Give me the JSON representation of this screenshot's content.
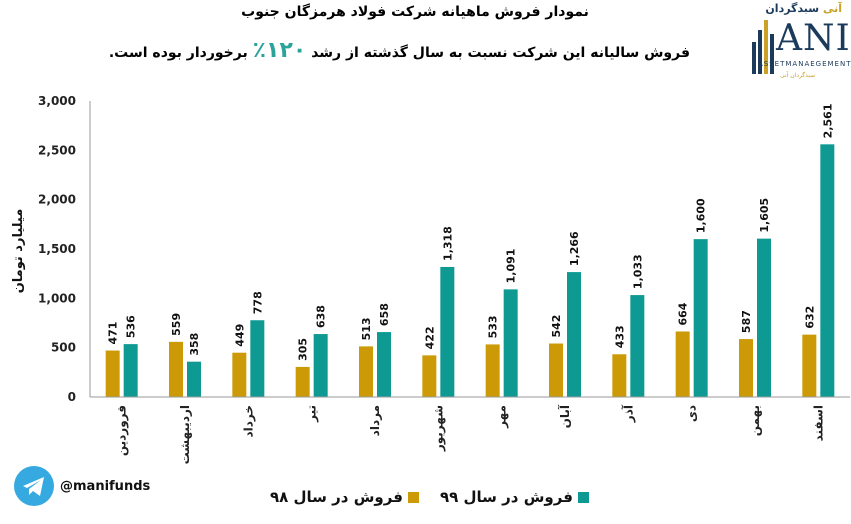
{
  "header": {
    "title": "نمودار فروش ماهیانه شرکت فولاد هرمزگان جنوب",
    "subtitle_before": "فروش سالیانه این شرکت نسبت به سال گذشته از رشد",
    "subtitle_growth": "۱۲۰٪",
    "subtitle_after": "برخوردار بوده است."
  },
  "logo": {
    "tagline_main": "سبدگردان",
    "tagline_accent": "آنی",
    "letters": "ANI",
    "name": "ASSETMANAEGEMENT",
    "sub": "سبدگردان آنی"
  },
  "footer": {
    "telegram_handle": "@manifunds"
  },
  "colors": {
    "series_98": "#cc9a06",
    "series_99": "#0e9a93",
    "accent": "#2aa39a"
  },
  "chart_data": {
    "type": "bar",
    "ylabel": "میلیارد تومان",
    "ylim": [
      0,
      3000
    ],
    "yticks": [
      0,
      500,
      1000,
      1500,
      2000,
      2500,
      3000
    ],
    "ytick_labels": [
      "0",
      "500",
      "1,000",
      "1,500",
      "2,000",
      "2,500",
      "3,000"
    ],
    "categories": [
      "فروردین",
      "اردیبهشت",
      "خرداد",
      "تیر",
      "مرداد",
      "شهریور",
      "مهر",
      "آبان",
      "آذر",
      "دی",
      "بهمن",
      "اسفند"
    ],
    "series": [
      {
        "name": "فروش در سال ۹۸",
        "values": [
          471,
          559,
          449,
          305,
          513,
          422,
          533,
          542,
          433,
          664,
          587,
          632
        ]
      },
      {
        "name": "فروش در سال ۹۹",
        "values": [
          536,
          358,
          778,
          638,
          658,
          1318,
          1091,
          1266,
          1033,
          1600,
          1605,
          2561
        ]
      }
    ],
    "legend_position": "bottom",
    "grid": false
  }
}
